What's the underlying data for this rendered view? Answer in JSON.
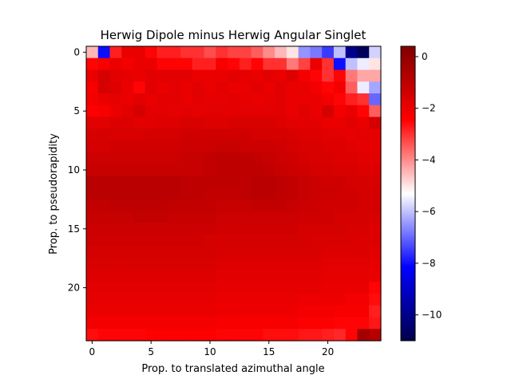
{
  "chart_data": {
    "type": "heatmap",
    "title": "Herwig Dipole minus Herwig Angular Singlet",
    "xlabel": "Prop. to translated azimuthal angle",
    "ylabel": "Prop. to pseudorapidity",
    "x_ticks": [
      0,
      5,
      10,
      15,
      20
    ],
    "y_ticks": [
      0,
      5,
      10,
      15,
      20
    ],
    "grid": false,
    "colormap": "seismic",
    "colorbar": {
      "vmin": -11,
      "vmax": 0.4,
      "ticks": [
        0,
        -2,
        -4,
        -6,
        -8,
        -10
      ],
      "tick_labels": [
        "0",
        "−2",
        "−4",
        "−6",
        "−8",
        "−10"
      ]
    },
    "rows": 25,
    "cols": 25,
    "z": [
      [
        -4.5,
        -8.0,
        -2.8,
        -2.0,
        -2.0,
        -2.5,
        -2.8,
        -2.8,
        -3.0,
        -3.0,
        -3.3,
        -3.0,
        -3.2,
        -3.2,
        -3.5,
        -4.0,
        -4.5,
        -5.0,
        -6.5,
        -6.8,
        -7.5,
        -6.0,
        -10.0,
        -10.8,
        -5.8
      ],
      [
        -2.5,
        -2.3,
        -2.0,
        -2.2,
        -2.0,
        -2.0,
        -2.5,
        -2.5,
        -2.5,
        -2.8,
        -2.8,
        -2.3,
        -2.5,
        -2.8,
        -2.5,
        -3.0,
        -3.0,
        -3.8,
        -3.2,
        -2.0,
        -3.0,
        -8.0,
        -6.0,
        -5.5,
        -5.0
      ],
      [
        -2.0,
        -1.5,
        -1.8,
        -1.9,
        -2.0,
        -1.8,
        -1.8,
        -1.8,
        -1.8,
        -2.0,
        -2.0,
        -2.0,
        -1.8,
        -1.9,
        -2.0,
        -1.8,
        -2.0,
        -1.7,
        -2.2,
        -2.5,
        -3.0,
        -2.5,
        -3.8,
        -4.3,
        -4.3
      ],
      [
        -2.3,
        -1.5,
        -1.7,
        -2.0,
        -2.5,
        -1.8,
        -2.0,
        -1.8,
        -2.0,
        -1.8,
        -2.0,
        -1.8,
        -2.0,
        -2.0,
        -1.8,
        -2.0,
        -1.8,
        -2.0,
        -2.0,
        -2.2,
        -2.5,
        -2.2,
        -3.5,
        -5.5,
        -6.3
      ],
      [
        -2.2,
        -2.0,
        -1.9,
        -2.0,
        -1.8,
        -2.0,
        -1.8,
        -1.8,
        -2.0,
        -1.8,
        -1.9,
        -1.9,
        -1.8,
        -1.9,
        -2.0,
        -1.9,
        -1.8,
        -2.0,
        -2.0,
        -2.0,
        -2.2,
        -2.5,
        -2.8,
        -3.0,
        -7.0
      ],
      [
        -2.4,
        -2.3,
        -2.0,
        -1.8,
        -1.5,
        -1.8,
        -1.8,
        -1.9,
        -1.8,
        -1.9,
        -1.8,
        -1.8,
        -1.8,
        -1.8,
        -1.8,
        -1.8,
        -1.8,
        -2.0,
        -1.8,
        -2.0,
        -1.5,
        -2.2,
        -2.0,
        -2.5,
        -3.5
      ],
      [
        -1.8,
        -1.8,
        -1.7,
        -1.7,
        -1.8,
        -1.8,
        -1.7,
        -1.7,
        -1.6,
        -1.6,
        -1.7,
        -1.7,
        -1.6,
        -1.6,
        -1.6,
        -1.6,
        -1.7,
        -1.8,
        -1.8,
        -1.8,
        -2.0,
        -2.0,
        -1.8,
        -2.0,
        -1.5
      ],
      [
        -1.6,
        -1.5,
        -1.6,
        -1.6,
        -1.6,
        -1.5,
        -1.5,
        -1.5,
        -1.4,
        -1.4,
        -1.4,
        -1.4,
        -1.4,
        -1.4,
        -1.5,
        -1.5,
        -1.5,
        -1.6,
        -1.7,
        -1.7,
        -1.8,
        -1.8,
        -1.9,
        -1.8,
        -1.9
      ],
      [
        -1.5,
        -1.5,
        -1.4,
        -1.4,
        -1.4,
        -1.4,
        -1.4,
        -1.4,
        -1.3,
        -1.3,
        -1.3,
        -1.2,
        -1.2,
        -1.3,
        -1.3,
        -1.3,
        -1.4,
        -1.5,
        -1.6,
        -1.6,
        -1.7,
        -1.7,
        -1.8,
        -1.9,
        -1.9
      ],
      [
        -1.3,
        -1.3,
        -1.3,
        -1.3,
        -1.3,
        -1.3,
        -1.3,
        -1.3,
        -1.2,
        -1.2,
        -1.1,
        -1.0,
        -1.0,
        -1.0,
        -1.1,
        -1.2,
        -1.3,
        -1.4,
        -1.5,
        -1.6,
        -1.6,
        -1.7,
        -1.7,
        -1.8,
        -1.8
      ],
      [
        -1.2,
        -1.2,
        -1.2,
        -1.2,
        -1.2,
        -1.2,
        -1.2,
        -1.2,
        -1.2,
        -1.2,
        -1.1,
        -1.0,
        -1.0,
        -1.0,
        -1.0,
        -1.1,
        -1.2,
        -1.3,
        -1.4,
        -1.5,
        -1.5,
        -1.6,
        -1.6,
        -1.7,
        -1.7
      ],
      [
        -0.9,
        -0.9,
        -0.9,
        -0.9,
        -0.9,
        -0.9,
        -0.9,
        -0.9,
        -1.0,
        -1.0,
        -1.0,
        -1.0,
        -1.0,
        -1.0,
        -0.9,
        -0.9,
        -1.0,
        -1.1,
        -1.2,
        -1.3,
        -1.4,
        -1.4,
        -1.5,
        -1.5,
        -1.6
      ],
      [
        -0.9,
        -0.9,
        -0.9,
        -0.9,
        -0.9,
        -0.9,
        -0.9,
        -0.9,
        -1.0,
        -1.0,
        -1.1,
        -1.1,
        -1.1,
        -1.0,
        -0.9,
        -0.9,
        -1.0,
        -1.1,
        -1.2,
        -1.3,
        -1.3,
        -1.4,
        -1.4,
        -1.5,
        -1.5
      ],
      [
        -1.1,
        -1.1,
        -1.0,
        -1.0,
        -1.0,
        -1.0,
        -1.0,
        -1.1,
        -1.1,
        -1.1,
        -1.1,
        -1.2,
        -1.2,
        -1.2,
        -1.1,
        -1.1,
        -1.1,
        -1.2,
        -1.3,
        -1.3,
        -1.4,
        -1.4,
        -1.4,
        -1.5,
        -1.5
      ],
      [
        -1.2,
        -1.2,
        -1.2,
        -1.2,
        -1.1,
        -1.1,
        -1.1,
        -1.2,
        -1.2,
        -1.2,
        -1.2,
        -1.3,
        -1.3,
        -1.3,
        -1.3,
        -1.3,
        -1.3,
        -1.3,
        -1.4,
        -1.4,
        -1.4,
        -1.5,
        -1.5,
        -1.5,
        -1.6
      ],
      [
        -1.3,
        -1.3,
        -1.3,
        -1.3,
        -1.3,
        -1.3,
        -1.3,
        -1.3,
        -1.3,
        -1.3,
        -1.3,
        -1.4,
        -1.4,
        -1.4,
        -1.4,
        -1.4,
        -1.4,
        -1.4,
        -1.5,
        -1.5,
        -1.5,
        -1.5,
        -1.6,
        -1.6,
        -1.7
      ],
      [
        -1.4,
        -1.4,
        -1.4,
        -1.4,
        -1.4,
        -1.4,
        -1.4,
        -1.4,
        -1.4,
        -1.4,
        -1.5,
        -1.5,
        -1.5,
        -1.5,
        -1.5,
        -1.5,
        -1.5,
        -1.5,
        -1.5,
        -1.6,
        -1.6,
        -1.6,
        -1.6,
        -1.7,
        -1.7
      ],
      [
        -1.5,
        -1.5,
        -1.5,
        -1.5,
        -1.5,
        -1.5,
        -1.5,
        -1.5,
        -1.5,
        -1.5,
        -1.5,
        -1.6,
        -1.6,
        -1.6,
        -1.6,
        -1.6,
        -1.6,
        -1.6,
        -1.6,
        -1.6,
        -1.7,
        -1.7,
        -1.7,
        -1.7,
        -1.8
      ],
      [
        -1.6,
        -1.6,
        -1.6,
        -1.6,
        -1.6,
        -1.6,
        -1.6,
        -1.6,
        -1.6,
        -1.6,
        -1.6,
        -1.7,
        -1.7,
        -1.7,
        -1.7,
        -1.7,
        -1.7,
        -1.7,
        -1.7,
        -1.7,
        -1.8,
        -1.8,
        -1.8,
        -1.8,
        -1.9
      ],
      [
        -1.7,
        -1.7,
        -1.7,
        -1.7,
        -1.7,
        -1.7,
        -1.7,
        -1.7,
        -1.7,
        -1.7,
        -1.7,
        -1.8,
        -1.8,
        -1.8,
        -1.8,
        -1.8,
        -1.8,
        -1.8,
        -1.8,
        -1.8,
        -1.9,
        -1.9,
        -1.9,
        -1.9,
        -2.0
      ],
      [
        -1.8,
        -1.8,
        -1.8,
        -1.8,
        -1.8,
        -1.8,
        -1.8,
        -1.8,
        -1.8,
        -1.8,
        -1.8,
        -1.9,
        -1.9,
        -1.9,
        -1.9,
        -1.9,
        -1.9,
        -1.9,
        -1.9,
        -1.9,
        -2.0,
        -2.0,
        -2.0,
        -2.0,
        -2.5
      ],
      [
        -1.9,
        -1.9,
        -1.9,
        -1.9,
        -1.9,
        -1.9,
        -1.9,
        -1.9,
        -1.9,
        -1.9,
        -1.9,
        -2.0,
        -2.0,
        -2.0,
        -2.0,
        -2.0,
        -2.0,
        -2.0,
        -2.1,
        -2.1,
        -2.1,
        -2.1,
        -2.2,
        -2.2,
        -2.6
      ],
      [
        -2.0,
        -2.0,
        -2.0,
        -2.0,
        -2.0,
        -2.0,
        -2.0,
        -2.0,
        -2.0,
        -2.0,
        -2.0,
        -2.1,
        -2.1,
        -2.1,
        -2.1,
        -2.1,
        -2.1,
        -2.1,
        -2.2,
        -2.2,
        -2.2,
        -2.3,
        -2.3,
        -2.3,
        -2.8
      ],
      [
        -2.2,
        -2.2,
        -2.2,
        -2.2,
        -2.2,
        -2.2,
        -2.2,
        -2.2,
        -2.2,
        -2.2,
        -2.2,
        -2.3,
        -2.3,
        -2.3,
        -2.3,
        -2.3,
        -2.3,
        -2.3,
        -2.4,
        -2.4,
        -2.4,
        -2.5,
        -2.5,
        -2.5,
        -2.7
      ],
      [
        -2.6,
        -2.5,
        -2.5,
        -2.5,
        -2.5,
        -2.4,
        -2.4,
        -2.4,
        -2.4,
        -2.4,
        -2.4,
        -2.5,
        -2.5,
        -2.5,
        -2.5,
        -2.6,
        -2.6,
        -2.6,
        -2.7,
        -2.7,
        -2.8,
        -2.9,
        -2.5,
        -0.4,
        -0.8
      ]
    ]
  }
}
